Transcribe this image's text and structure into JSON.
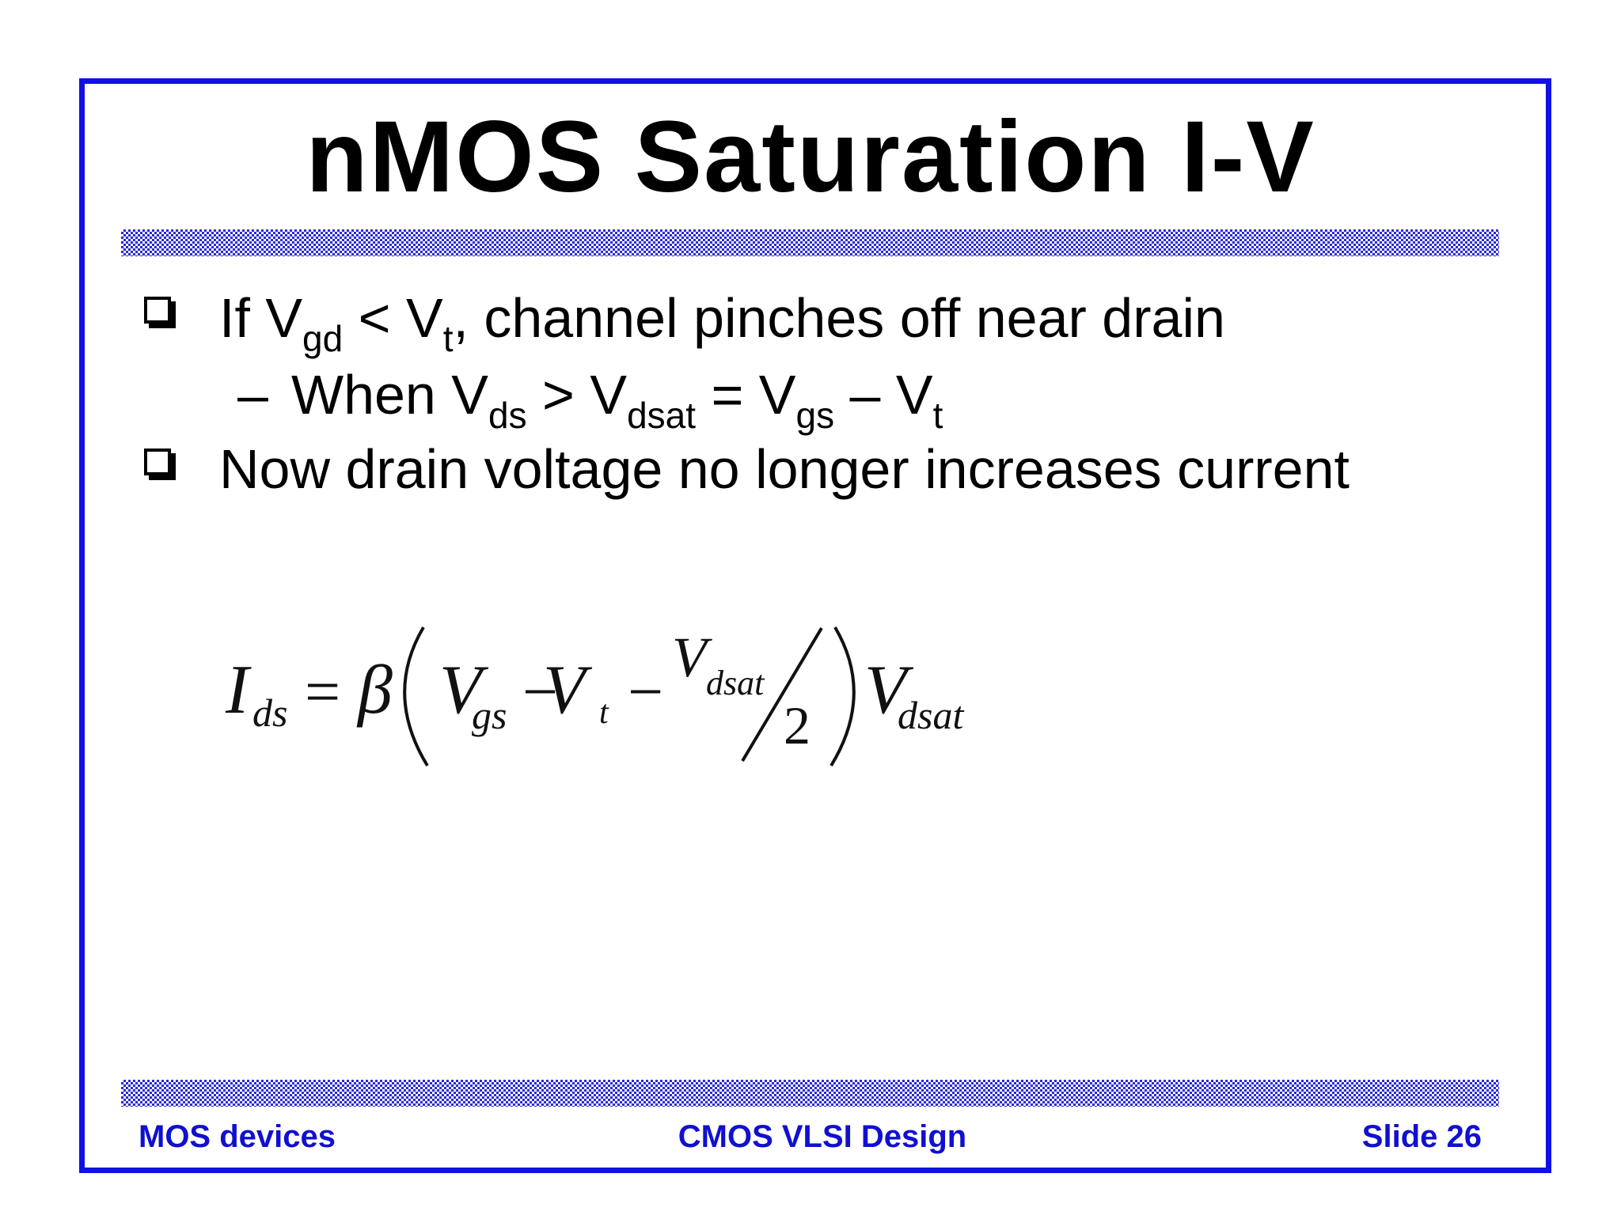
{
  "title": "nMOS Saturation I-V",
  "bullets": [
    {
      "parts": [
        "If V",
        "gd",
        " < V",
        "t",
        ", channel pinches off near drain"
      ],
      "subitems": [
        {
          "dash": "–",
          "parts": [
            "When V",
            "ds",
            " > V",
            "dsat",
            " = V",
            "gs",
            " – V",
            "t"
          ]
        }
      ]
    },
    {
      "parts": [
        "Now drain voltage no longer increases current"
      ]
    }
  ],
  "equation": {
    "lhs": "I",
    "lhs_sub": "ds",
    "equals": "=",
    "beta": "β",
    "terms": [
      "V",
      "gs",
      "−",
      "V",
      "t",
      "−"
    ],
    "numerator": "V",
    "numerator_sub": "dsat",
    "denominator": "2",
    "factor": "V",
    "factor_sub": "dsat"
  },
  "footer": {
    "left": "MOS devices",
    "center": "CMOS VLSI Design",
    "right": "Slide 26"
  }
}
